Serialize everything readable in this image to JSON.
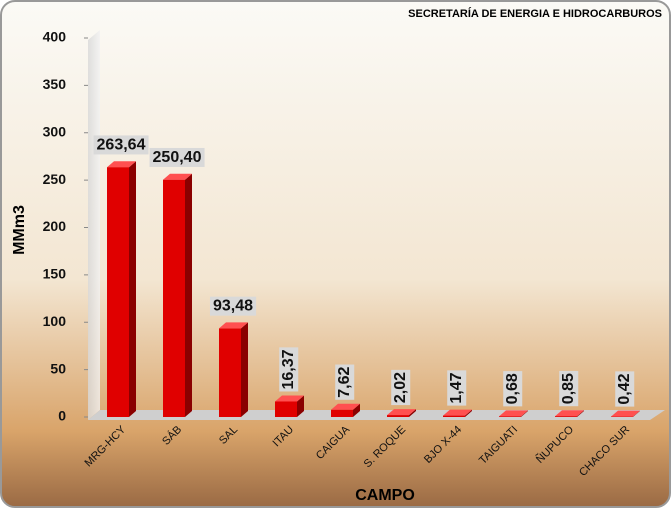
{
  "chart_data": {
    "type": "bar",
    "title": "SECRETARÍA DE ENERGIA E HIDROCARBUROS",
    "categories": [
      "MRG-HCY",
      "SÁB",
      "SAL",
      "ITAU",
      "CAIGUA",
      "S. ROQUE",
      "BJO X-44",
      "TAIGUATI",
      "ÑUPUCO",
      "CHACO SUR"
    ],
    "values": [
      263.64,
      250.4,
      93.48,
      16.37,
      7.62,
      2.02,
      1.47,
      0.68,
      0.85,
      0.42
    ],
    "value_labels": [
      "263,64",
      "250,40",
      "93,48",
      "16,37",
      "7,62",
      "2,02",
      "1,47",
      "0,68",
      "0,85",
      "0,42"
    ],
    "color": "#e00000",
    "ylim": [
      0,
      400
    ],
    "yticks": [
      0,
      50,
      100,
      150,
      200,
      250,
      300,
      350,
      400
    ],
    "y_label": "MMm3",
    "x_label": "CAMPO"
  }
}
